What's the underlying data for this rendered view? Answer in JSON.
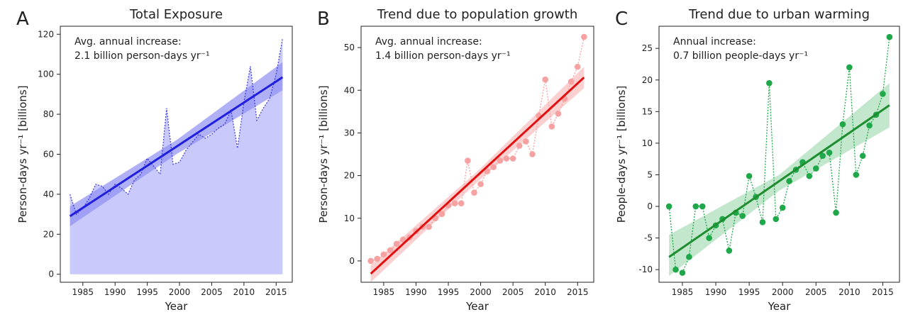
{
  "chart_data": [
    {
      "panel_letter": "A",
      "type": "area",
      "title": "Total Exposure",
      "xlabel": "Year",
      "ylabel": "Person-days yr⁻¹ [billions]",
      "xlim": [
        1981.5,
        2017.5
      ],
      "ylim": [
        -4,
        124
      ],
      "xticks": [
        1985,
        1990,
        1995,
        2000,
        2005,
        2010,
        2015
      ],
      "yticks": [
        0,
        20,
        40,
        60,
        80,
        100,
        120
      ],
      "annotation": [
        "Avg. annual increase:",
        "2.1 billion person-days yr⁻¹"
      ],
      "color": "#1f1fdd",
      "fill_color": "#c9c9fb",
      "band_color": "#8f8ff4",
      "x": [
        1983,
        1984,
        1985,
        1986,
        1987,
        1988,
        1989,
        1990,
        1991,
        1992,
        1993,
        1994,
        1995,
        1996,
        1997,
        1998,
        1999,
        2000,
        2001,
        2002,
        2003,
        2004,
        2005,
        2006,
        2007,
        2008,
        2009,
        2010,
        2011,
        2012,
        2013,
        2014,
        2015,
        2016
      ],
      "y": [
        40,
        30,
        33,
        38,
        45,
        44,
        40,
        45,
        43,
        40,
        47,
        50,
        58,
        54,
        50,
        83,
        55,
        56,
        62,
        66,
        70,
        68,
        70,
        73,
        75,
        82,
        63,
        86,
        104,
        77,
        83,
        88,
        100,
        118
      ],
      "trend": {
        "x0": 1983,
        "y0": 29,
        "x1": 2016,
        "y1": 98.5,
        "ci": [
          [
            1983,
            24,
            34
          ],
          [
            1999.5,
            60,
            67
          ],
          [
            2016,
            92,
            106
          ]
        ]
      },
      "grid": false,
      "markers": false,
      "filled": true
    },
    {
      "panel_letter": "B",
      "type": "scatter",
      "title": "Trend due to population growth",
      "xlabel": "Year",
      "ylabel": "Person-days yr⁻¹ [billions]",
      "xlim": [
        1981.5,
        2017.5
      ],
      "ylim": [
        -5,
        55
      ],
      "xticks": [
        1985,
        1990,
        1995,
        2000,
        2005,
        2010,
        2015
      ],
      "yticks": [
        0,
        10,
        20,
        30,
        40,
        50
      ],
      "annotation": [
        "Avg. annual increase:",
        "1.4 billion person-days yr⁻¹"
      ],
      "color": "#e01010",
      "marker_color": "#f7a2a2",
      "band_color": "#f9bcbc",
      "x": [
        1983,
        1984,
        1985,
        1986,
        1987,
        1988,
        1989,
        1990,
        1991,
        1992,
        1993,
        1994,
        1995,
        1996,
        1997,
        1998,
        1999,
        2000,
        2001,
        2002,
        2003,
        2004,
        2005,
        2006,
        2007,
        2008,
        2009,
        2010,
        2011,
        2012,
        2013,
        2014,
        2015,
        2016
      ],
      "y": [
        0,
        0.5,
        1.5,
        2.5,
        4,
        5,
        5.5,
        7,
        8,
        8,
        10,
        11,
        13,
        13.5,
        13.5,
        23.5,
        16,
        18,
        21,
        22,
        23.5,
        24,
        24,
        27,
        28,
        25,
        34,
        42.5,
        31.5,
        34.5,
        38,
        42,
        45.5,
        52.5
      ],
      "trend": {
        "x0": 1983,
        "y0": -3,
        "x1": 2016,
        "y1": 43,
        "ci": [
          [
            1983,
            -5,
            -1
          ],
          [
            1999.5,
            18.5,
            21
          ],
          [
            2016,
            40.5,
            45.5
          ]
        ]
      },
      "grid": false,
      "markers": true,
      "filled": false
    },
    {
      "panel_letter": "C",
      "type": "scatter",
      "title": "Trend due to urban warming",
      "xlabel": "Year",
      "ylabel": "People-days yr⁻¹ [billions]",
      "xlim": [
        1981.5,
        2017.5
      ],
      "ylim": [
        -12,
        28.5
      ],
      "xticks": [
        1985,
        1990,
        1995,
        2000,
        2005,
        2010,
        2015
      ],
      "yticks": [
        -10,
        -5,
        0,
        5,
        10,
        15,
        20,
        25
      ],
      "annotation": [
        "Annual increase:",
        "0.7 billion people-days yr⁻¹"
      ],
      "color": "#1e8e30",
      "marker_color": "#1fa84a",
      "band_color": "#a9ddb6",
      "x": [
        1983,
        1984,
        1985,
        1986,
        1987,
        1988,
        1989,
        1990,
        1991,
        1992,
        1993,
        1994,
        1995,
        1996,
        1997,
        1998,
        1999,
        2000,
        2001,
        2002,
        2003,
        2004,
        2005,
        2006,
        2007,
        2008,
        2009,
        2010,
        2011,
        2012,
        2013,
        2014,
        2015,
        2016
      ],
      "y": [
        0,
        -10,
        -10.5,
        -8,
        0,
        0,
        -5,
        -3,
        -2,
        -7,
        -1,
        -1.5,
        4.8,
        1.5,
        -2.5,
        19.5,
        -2,
        -0.2,
        4,
        5.8,
        7,
        4.8,
        6,
        8,
        8.5,
        -1,
        13,
        22,
        5,
        8,
        12.8,
        14.5,
        17.8,
        26.8
      ],
      "trend": {
        "x0": 1983,
        "y0": -8,
        "x1": 2016,
        "y1": 16,
        "ci": [
          [
            1983,
            -11,
            -4.5
          ],
          [
            1999.5,
            2.5,
            5
          ],
          [
            2016,
            12.5,
            19.5
          ]
        ]
      },
      "grid": false,
      "markers": true,
      "filled": false
    }
  ]
}
